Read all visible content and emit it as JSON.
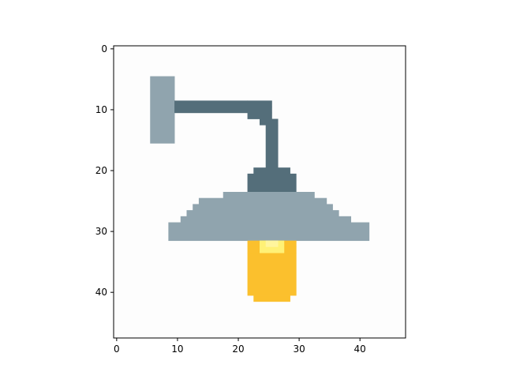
{
  "chart_data": {
    "type": "heatmap",
    "title": "",
    "xlabel": "",
    "ylabel": "",
    "xlim": [
      -0.5,
      47.5
    ],
    "ylim": [
      47.5,
      -0.5
    ],
    "grid": false,
    "x_ticks": [
      0,
      10,
      20,
      30,
      40
    ],
    "y_ticks": [
      0,
      10,
      20,
      30,
      40
    ],
    "background_color": "#fdfdfd",
    "regions": [
      {
        "name": "wall-plate",
        "color": "#90a4ae",
        "rows": [
          [
            5,
            15,
            6,
            9
          ]
        ]
      },
      {
        "name": "arm",
        "color": "#546e7a",
        "rows": [
          [
            9,
            9,
            10,
            21
          ],
          [
            9,
            9,
            22,
            25
          ],
          [
            10,
            10,
            10,
            21
          ],
          [
            10,
            10,
            22,
            25
          ],
          [
            11,
            11,
            22,
            25
          ],
          [
            12,
            12,
            24,
            26
          ],
          [
            13,
            19,
            25,
            26
          ],
          [
            20,
            20,
            23,
            28
          ],
          [
            21,
            23,
            22,
            29
          ]
        ]
      },
      {
        "name": "shade",
        "color": "#90a4ae",
        "rows": [
          [
            24,
            24,
            18,
            32
          ],
          [
            25,
            25,
            14,
            34
          ],
          [
            26,
            26,
            13,
            35
          ],
          [
            27,
            27,
            12,
            36
          ],
          [
            28,
            28,
            11,
            38
          ],
          [
            29,
            31,
            9,
            41
          ]
        ]
      },
      {
        "name": "bulb",
        "color": "#fbc02d",
        "rows": [
          [
            32,
            32,
            22,
            29
          ],
          [
            33,
            33,
            22,
            29
          ],
          [
            34,
            40,
            22,
            29
          ],
          [
            41,
            41,
            23,
            28
          ]
        ]
      },
      {
        "name": "bulb-glow",
        "color": "#fff176",
        "rows": [
          [
            32,
            33,
            24,
            27
          ]
        ]
      },
      {
        "name": "bulb-highlight",
        "color": "#fff59d",
        "rows": [
          [
            32,
            32,
            25,
            26
          ]
        ]
      }
    ]
  }
}
